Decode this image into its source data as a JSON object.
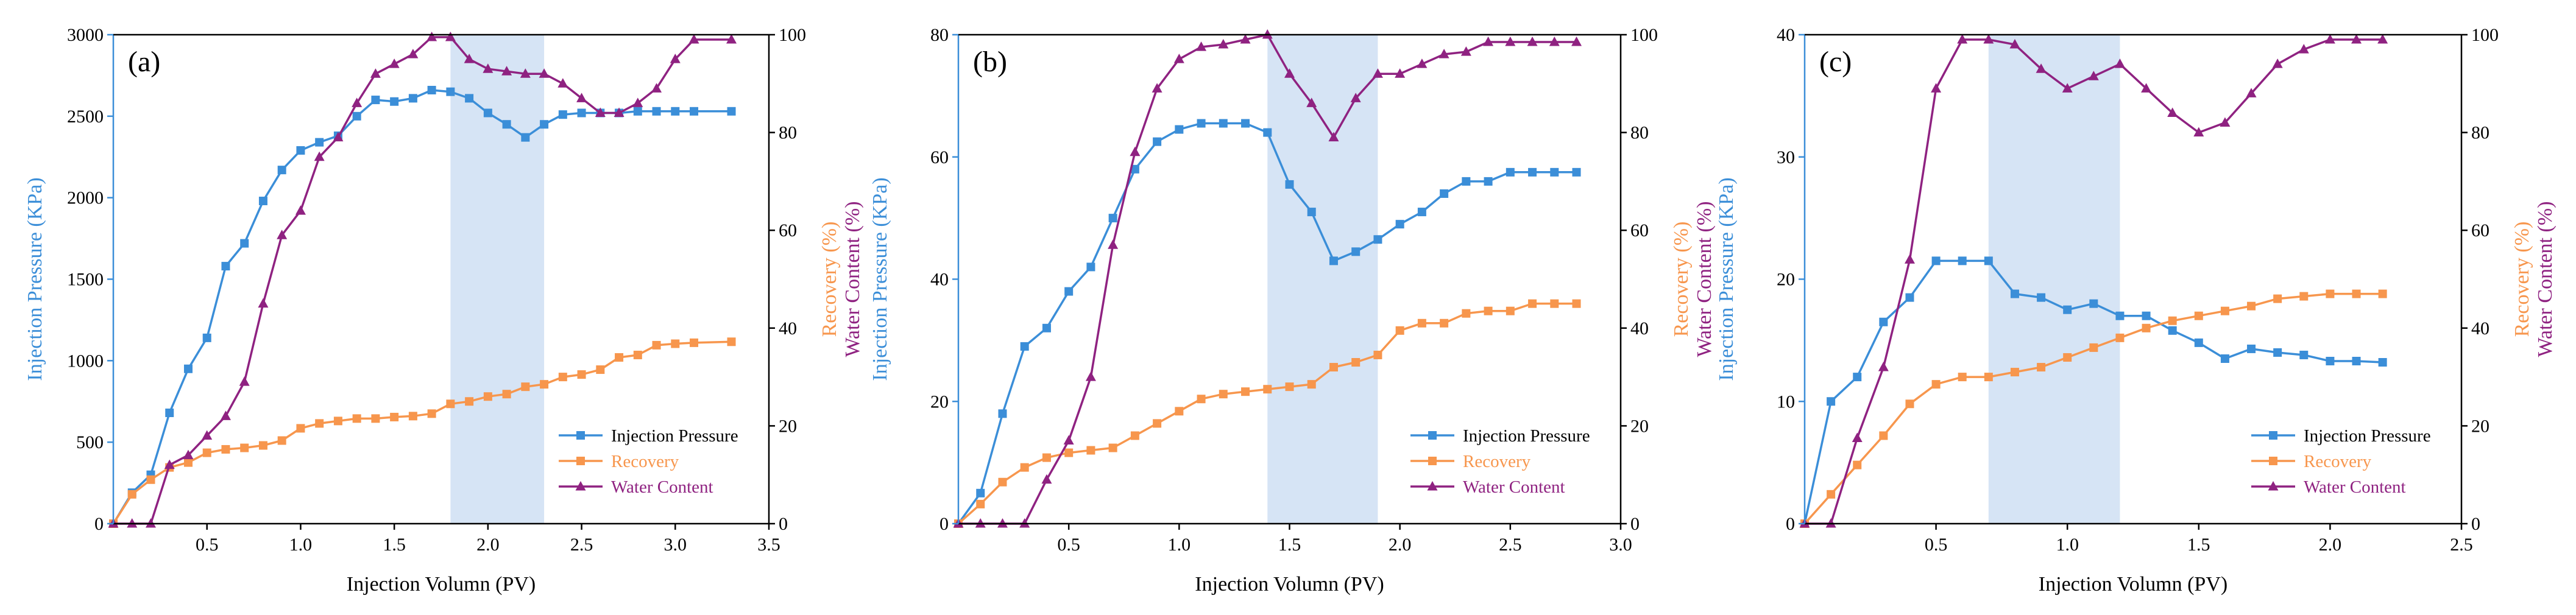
{
  "colors": {
    "pressure": "#3b8ed8",
    "recovery": "#f7964d",
    "water": "#8f2281",
    "highlight": "#d6e4f5",
    "axis": "#000000"
  },
  "chart_data": [
    {
      "type": "line",
      "panel_label": "(a)",
      "xlabel": "Injection Volumn  (PV)",
      "ylabel_left": "Injection Pressure  (KPa)",
      "ylabel_right_1": "Recovery (%)",
      "ylabel_right_2": "Water Content (%)",
      "xlim": [
        0,
        3.5
      ],
      "ylim_left": [
        0,
        3000
      ],
      "ylim_right": [
        0,
        100
      ],
      "x_ticks": [
        0.5,
        1.0,
        1.5,
        2.0,
        2.5,
        3.0,
        3.5
      ],
      "x_tick_labels": [
        "0.5",
        "1.0",
        "1.5",
        "2.0",
        "2.5",
        "3.0",
        "3.5"
      ],
      "y_left_ticks": [
        0,
        500,
        1000,
        1500,
        2000,
        2500,
        3000
      ],
      "y_left_tick_labels": [
        "0",
        "500",
        "1000",
        "1500",
        "2000",
        "2500",
        "3000"
      ],
      "y_right_ticks": [
        0,
        20,
        40,
        60,
        80,
        100
      ],
      "y_right_tick_labels": [
        "0",
        "20",
        "40",
        "60",
        "80",
        "100"
      ],
      "highlight_x": [
        1.8,
        2.3
      ],
      "legend": [
        "Injection Pressure",
        "Recovery",
        "Water Content"
      ],
      "legend_position": "lower-right",
      "series": [
        {
          "name": "Injection Pressure",
          "axis": "left",
          "marker": "square",
          "x": [
            0,
            0.1,
            0.2,
            0.3,
            0.4,
            0.5,
            0.6,
            0.7,
            0.8,
            0.9,
            1.0,
            1.1,
            1.2,
            1.3,
            1.4,
            1.5,
            1.6,
            1.7,
            1.8,
            1.9,
            2.0,
            2.1,
            2.2,
            2.3,
            2.4,
            2.5,
            2.6,
            2.7,
            2.8,
            2.9,
            3.0,
            3.1,
            3.3
          ],
          "values": [
            0,
            190,
            300,
            680,
            950,
            1140,
            1580,
            1720,
            1980,
            2170,
            2290,
            2340,
            2380,
            2500,
            2600,
            2590,
            2610,
            2660,
            2650,
            2610,
            2520,
            2450,
            2370,
            2450,
            2510,
            2520,
            2520,
            2520,
            2530,
            2530,
            2530,
            2530,
            2530
          ]
        },
        {
          "name": "Recovery",
          "axis": "right",
          "marker": "square",
          "x": [
            0,
            0.1,
            0.2,
            0.3,
            0.4,
            0.5,
            0.6,
            0.7,
            0.8,
            0.9,
            1.0,
            1.1,
            1.2,
            1.3,
            1.4,
            1.5,
            1.6,
            1.7,
            1.8,
            1.9,
            2.0,
            2.1,
            2.2,
            2.3,
            2.4,
            2.5,
            2.6,
            2.7,
            2.8,
            2.9,
            3.0,
            3.1,
            3.3
          ],
          "values": [
            0,
            6,
            9,
            11.5,
            12.5,
            14.5,
            15.2,
            15.5,
            16,
            17,
            19.5,
            20.5,
            21,
            21.5,
            21.5,
            21.8,
            22,
            22.5,
            24.5,
            25,
            26,
            26.5,
            28,
            28.5,
            30,
            30.5,
            31.5,
            34,
            34.5,
            36.5,
            36.8,
            37,
            37.2
          ]
        },
        {
          "name": "Water Content",
          "axis": "right",
          "marker": "triangle",
          "x": [
            0,
            0.1,
            0.2,
            0.3,
            0.4,
            0.5,
            0.6,
            0.7,
            0.8,
            0.9,
            1.0,
            1.1,
            1.2,
            1.3,
            1.4,
            1.5,
            1.6,
            1.7,
            1.8,
            1.9,
            2.0,
            2.1,
            2.2,
            2.3,
            2.4,
            2.5,
            2.6,
            2.7,
            2.8,
            2.9,
            3.0,
            3.1,
            3.3
          ],
          "values": [
            0,
            0,
            0,
            12,
            14,
            18,
            22,
            29,
            45,
            59,
            64,
            75,
            79,
            86,
            92,
            94,
            96,
            99.5,
            99.5,
            95,
            93,
            92.5,
            92,
            92,
            90,
            87,
            84,
            84,
            86,
            89,
            95,
            99,
            99
          ]
        }
      ]
    },
    {
      "type": "line",
      "panel_label": "(b)",
      "xlabel": "Injection Volumn (PV)",
      "ylabel_left": "Injection Pressure (KPa)",
      "ylabel_right_1": "Recovery (%)",
      "ylabel_right_2": "Water Content (%)",
      "xlim": [
        0,
        3.0
      ],
      "ylim_left": [
        0,
        80
      ],
      "ylim_right": [
        0,
        100
      ],
      "x_ticks": [
        0.5,
        1.0,
        1.5,
        2.0,
        2.5,
        3.0
      ],
      "x_tick_labels": [
        "0.5",
        "1.0",
        "1.5",
        "2.0",
        "2.5",
        "3.0"
      ],
      "y_left_ticks": [
        0,
        20,
        40,
        60,
        80
      ],
      "y_left_tick_labels": [
        "0",
        "20",
        "40",
        "60",
        "80"
      ],
      "y_right_ticks": [
        0,
        20,
        40,
        60,
        80,
        100
      ],
      "y_right_tick_labels": [
        "0",
        "20",
        "40",
        "60",
        "80",
        "100"
      ],
      "highlight_x": [
        1.4,
        1.9
      ],
      "legend": [
        "Injection Pressure",
        "Recovery",
        "Water Content"
      ],
      "legend_position": "lower-right",
      "series": [
        {
          "name": "Injection Pressure",
          "axis": "left",
          "marker": "square",
          "x": [
            0,
            0.1,
            0.2,
            0.3,
            0.4,
            0.5,
            0.6,
            0.7,
            0.8,
            0.9,
            1.0,
            1.1,
            1.2,
            1.3,
            1.4,
            1.5,
            1.6,
            1.7,
            1.8,
            1.9,
            2.0,
            2.1,
            2.2,
            2.3,
            2.4,
            2.5,
            2.6,
            2.7,
            2.8
          ],
          "values": [
            0,
            5,
            18,
            29,
            32,
            38,
            42,
            50,
            58,
            62.5,
            64.5,
            65.5,
            65.5,
            65.5,
            64,
            55.5,
            51,
            43,
            44.5,
            46.5,
            49,
            51,
            54,
            56,
            56,
            57.5,
            57.5,
            57.5,
            57.5
          ]
        },
        {
          "name": "Recovery",
          "axis": "right",
          "marker": "square",
          "x": [
            0,
            0.1,
            0.2,
            0.3,
            0.4,
            0.5,
            0.6,
            0.7,
            0.8,
            0.9,
            1.0,
            1.1,
            1.2,
            1.3,
            1.4,
            1.5,
            1.6,
            1.7,
            1.8,
            1.9,
            2.0,
            2.1,
            2.2,
            2.3,
            2.4,
            2.5,
            2.6,
            2.7,
            2.8
          ],
          "values": [
            0,
            4,
            8.5,
            11.5,
            13.5,
            14.5,
            15,
            15.5,
            18,
            20.5,
            23,
            25.5,
            26.5,
            27,
            27.5,
            28,
            28.5,
            32,
            33,
            34.5,
            39.5,
            41,
            41,
            43,
            43.5,
            43.5,
            45,
            45,
            45
          ]
        },
        {
          "name": "Water Content",
          "axis": "right",
          "marker": "triangle",
          "x": [
            0,
            0.1,
            0.2,
            0.3,
            0.4,
            0.5,
            0.6,
            0.7,
            0.8,
            0.9,
            1.0,
            1.1,
            1.2,
            1.3,
            1.4,
            1.5,
            1.6,
            1.7,
            1.8,
            1.9,
            2.0,
            2.1,
            2.2,
            2.3,
            2.4,
            2.5,
            2.6,
            2.7,
            2.8
          ],
          "values": [
            0,
            0,
            0,
            0,
            9,
            17,
            30,
            57,
            76,
            89,
            95,
            97.5,
            98,
            99,
            100,
            92,
            86,
            79,
            87,
            92,
            92,
            94,
            96,
            96.5,
            98.5,
            98.5,
            98.5,
            98.5,
            98.5
          ]
        }
      ]
    },
    {
      "type": "line",
      "panel_label": "(c)",
      "xlabel": "Injection Volumn (PV)",
      "ylabel_left": "Injection Pressure (KPa)",
      "ylabel_right_1": "Recovery (%)",
      "ylabel_right_2": "Water Content (%)",
      "xlim": [
        0,
        2.5
      ],
      "ylim_left": [
        0,
        40
      ],
      "ylim_right": [
        0,
        100
      ],
      "x_ticks": [
        0.5,
        1.0,
        1.5,
        2.0,
        2.5
      ],
      "x_tick_labels": [
        "0.5",
        "1.0",
        "1.5",
        "2.0",
        "2.5"
      ],
      "y_left_ticks": [
        0,
        10,
        20,
        30,
        40
      ],
      "y_left_tick_labels": [
        "0",
        "10",
        "20",
        "30",
        "40"
      ],
      "y_right_ticks": [
        0,
        20,
        40,
        60,
        80,
        100
      ],
      "y_right_tick_labels": [
        "0",
        "20",
        "40",
        "60",
        "80",
        "100"
      ],
      "highlight_x": [
        0.7,
        1.2
      ],
      "legend": [
        "Injection Pressure",
        "Recovery",
        "Water Content"
      ],
      "legend_position": "lower-right",
      "series": [
        {
          "name": "Injection Pressure",
          "axis": "left",
          "marker": "square",
          "x": [
            0,
            0.1,
            0.2,
            0.3,
            0.4,
            0.5,
            0.6,
            0.7,
            0.8,
            0.9,
            1.0,
            1.1,
            1.2,
            1.3,
            1.4,
            1.5,
            1.6,
            1.7,
            1.8,
            1.9,
            2.0,
            2.1,
            2.2
          ],
          "values": [
            0,
            10,
            12,
            16.5,
            18.5,
            21.5,
            21.5,
            21.5,
            18.8,
            18.5,
            17.5,
            18,
            17,
            17,
            15.8,
            14.8,
            13.5,
            14.3,
            14,
            13.8,
            13.3,
            13.3,
            13.2
          ]
        },
        {
          "name": "Recovery",
          "axis": "right",
          "marker": "square",
          "x": [
            0,
            0.1,
            0.2,
            0.3,
            0.4,
            0.5,
            0.6,
            0.7,
            0.8,
            0.9,
            1.0,
            1.1,
            1.2,
            1.3,
            1.4,
            1.5,
            1.6,
            1.7,
            1.8,
            1.9,
            2.0,
            2.1,
            2.2
          ],
          "values": [
            0,
            6,
            12,
            18,
            24.5,
            28.5,
            30,
            30,
            31,
            32,
            34,
            36,
            38,
            40,
            41.5,
            42.5,
            43.5,
            44.5,
            46,
            46.5,
            47,
            47,
            47
          ]
        },
        {
          "name": "Water Content",
          "axis": "right",
          "marker": "triangle",
          "x": [
            0,
            0.1,
            0.2,
            0.3,
            0.4,
            0.5,
            0.6,
            0.7,
            0.8,
            0.9,
            1.0,
            1.1,
            1.2,
            1.3,
            1.4,
            1.5,
            1.6,
            1.7,
            1.8,
            1.9,
            2.0,
            2.1,
            2.2
          ],
          "values": [
            0,
            0,
            17.5,
            32,
            54,
            89,
            99,
            99,
            98,
            93,
            89,
            91.5,
            94,
            89,
            84,
            80,
            82,
            88,
            94,
            97,
            99,
            99,
            99
          ]
        }
      ]
    }
  ]
}
